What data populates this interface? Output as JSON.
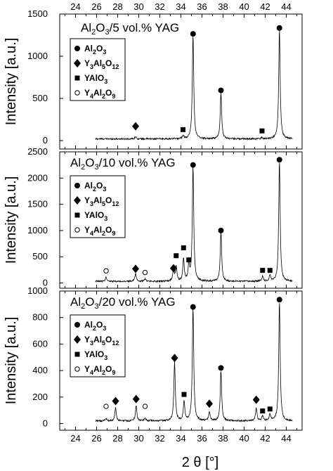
{
  "chart_data": [
    {
      "type": "line",
      "title": "Al2O3/5 vol.% YAG",
      "xlabel": "2 θ [°]",
      "ylabel": "Intensity [a.u.]",
      "xlim": [
        22.5,
        45.5
      ],
      "ylim": [
        -100,
        1500
      ],
      "yticks": [
        0,
        500,
        1000,
        1500
      ],
      "xticks": [
        24,
        26,
        28,
        30,
        32,
        34,
        36,
        38,
        40,
        42,
        44
      ],
      "baseline": 20,
      "peaks": [
        {
          "x": 29.7,
          "h": 30,
          "w": 0.08
        },
        {
          "x": 34.2,
          "h": 45,
          "w": 0.08
        },
        {
          "x": 35.15,
          "h": 1230,
          "w": 0.08
        },
        {
          "x": 37.8,
          "h": 550,
          "w": 0.08
        },
        {
          "x": 41.7,
          "h": 15,
          "w": 0.08
        },
        {
          "x": 43.35,
          "h": 1300,
          "w": 0.08
        }
      ],
      "markers": [
        {
          "phase": "Y3Al5O12",
          "x": 29.7,
          "y": 170
        },
        {
          "phase": "YAlO3",
          "x": 34.2,
          "y": 130
        },
        {
          "phase": "Al2O3",
          "x": 35.15,
          "y": 1265
        },
        {
          "phase": "Al2O3",
          "x": 37.8,
          "y": 595
        },
        {
          "phase": "YAlO3",
          "x": 41.7,
          "y": 115
        },
        {
          "phase": "Al2O3",
          "x": 43.35,
          "y": 1335
        }
      ]
    },
    {
      "type": "line",
      "title": "Al2O3/10 vol.% YAG",
      "xlabel": "2 θ [°]",
      "ylabel": "Intensity [a.u.]",
      "xlim": [
        22.5,
        45.5
      ],
      "ylim": [
        -100,
        2500
      ],
      "yticks": [
        0,
        500,
        1000,
        1500,
        2000,
        2500
      ],
      "xticks": [
        24,
        26,
        28,
        30,
        32,
        34,
        36,
        38,
        40,
        42,
        44
      ],
      "baseline": 30,
      "peaks": [
        {
          "x": 26.9,
          "h": 80,
          "w": 0.08
        },
        {
          "x": 29.7,
          "h": 150,
          "w": 0.08
        },
        {
          "x": 30.6,
          "h": 50,
          "w": 0.08
        },
        {
          "x": 33.3,
          "h": 220,
          "w": 0.08
        },
        {
          "x": 33.55,
          "h": 280,
          "w": 0.08
        },
        {
          "x": 34.25,
          "h": 420,
          "w": 0.08
        },
        {
          "x": 34.75,
          "h": 300,
          "w": 0.08
        },
        {
          "x": 35.15,
          "h": 2200,
          "w": 0.08
        },
        {
          "x": 37.8,
          "h": 950,
          "w": 0.08
        },
        {
          "x": 41.75,
          "h": 100,
          "w": 0.08
        },
        {
          "x": 42.45,
          "h": 120,
          "w": 0.08
        },
        {
          "x": 43.35,
          "h": 2300,
          "w": 0.08
        }
      ],
      "markers": [
        {
          "phase": "Y4Al2O9",
          "x": 26.9,
          "y": 230
        },
        {
          "phase": "Y3Al5O12",
          "x": 29.7,
          "y": 270
        },
        {
          "phase": "Y4Al2O9",
          "x": 30.6,
          "y": 200
        },
        {
          "phase": "Y3Al5O12",
          "x": 33.3,
          "y": 280
        },
        {
          "phase": "YAlO3",
          "x": 33.55,
          "y": 520
        },
        {
          "phase": "YAlO3",
          "x": 34.25,
          "y": 670
        },
        {
          "phase": "YAlO3",
          "x": 34.75,
          "y": 440
        },
        {
          "phase": "Al2O3",
          "x": 35.15,
          "y": 2250
        },
        {
          "phase": "Al2O3",
          "x": 37.8,
          "y": 1000
        },
        {
          "phase": "YAlO3",
          "x": 41.75,
          "y": 240
        },
        {
          "phase": "YAlO3",
          "x": 42.45,
          "y": 240
        },
        {
          "phase": "Al2O3",
          "x": 43.35,
          "y": 2350
        }
      ]
    },
    {
      "type": "line",
      "title": "Al2O3/20 vol.% YAG",
      "xlabel": "2 θ [°]",
      "ylabel": "Intensity [a.u.]",
      "xlim": [
        22.5,
        45.5
      ],
      "ylim": [
        -50,
        1000
      ],
      "yticks": [
        0,
        200,
        400,
        600,
        800,
        1000
      ],
      "xticks": [
        24,
        26,
        28,
        30,
        32,
        34,
        36,
        38,
        40,
        42,
        44
      ],
      "baseline": 20,
      "peaks": [
        {
          "x": 26.9,
          "h": 20,
          "w": 0.08
        },
        {
          "x": 27.8,
          "h": 100,
          "w": 0.08
        },
        {
          "x": 29.75,
          "h": 115,
          "w": 0.08
        },
        {
          "x": 30.6,
          "h": 20,
          "w": 0.08
        },
        {
          "x": 33.4,
          "h": 450,
          "w": 0.08
        },
        {
          "x": 34.3,
          "h": 145,
          "w": 0.08
        },
        {
          "x": 35.15,
          "h": 850,
          "w": 0.08
        },
        {
          "x": 36.7,
          "h": 70,
          "w": 0.08
        },
        {
          "x": 37.8,
          "h": 380,
          "w": 0.08
        },
        {
          "x": 41.15,
          "h": 100,
          "w": 0.08
        },
        {
          "x": 41.75,
          "h": 40,
          "w": 0.08
        },
        {
          "x": 42.45,
          "h": 50,
          "w": 0.08
        },
        {
          "x": 43.35,
          "h": 905,
          "w": 0.08
        }
      ],
      "markers": [
        {
          "phase": "Y4Al2O9",
          "x": 26.9,
          "y": 130
        },
        {
          "phase": "Y3Al5O12",
          "x": 27.8,
          "y": 170
        },
        {
          "phase": "Y3Al5O12",
          "x": 29.75,
          "y": 185
        },
        {
          "phase": "Y4Al2O9",
          "x": 30.6,
          "y": 130
        },
        {
          "phase": "Y3Al5O12",
          "x": 33.4,
          "y": 495
        },
        {
          "phase": "YAlO3",
          "x": 34.3,
          "y": 220
        },
        {
          "phase": "Al2O3",
          "x": 35.15,
          "y": 880
        },
        {
          "phase": "Y3Al5O12",
          "x": 36.7,
          "y": 150
        },
        {
          "phase": "Al2O3",
          "x": 37.8,
          "y": 420
        },
        {
          "phase": "Y3Al5O12",
          "x": 41.15,
          "y": 180
        },
        {
          "phase": "YAlO3",
          "x": 41.75,
          "y": 95
        },
        {
          "phase": "YAlO3",
          "x": 42.45,
          "y": 110
        },
        {
          "phase": "Al2O3",
          "x": 43.35,
          "y": 935
        }
      ]
    }
  ],
  "legend": [
    {
      "phase": "Al2O3",
      "symbol": "filled-circle",
      "label_main": "Al",
      "label_parts": [
        [
          "Al",
          ""
        ],
        [
          "2",
          "sub"
        ],
        [
          "O",
          ""
        ],
        [
          "3",
          "sub"
        ]
      ]
    },
    {
      "phase": "Y3Al5O12",
      "symbol": "filled-diamond",
      "label_parts": [
        [
          "Y",
          ""
        ],
        [
          "3",
          "sub"
        ],
        [
          "Al",
          ""
        ],
        [
          "5",
          "sub"
        ],
        [
          "O",
          ""
        ],
        [
          "12",
          "sub"
        ]
      ]
    },
    {
      "phase": "YAlO3",
      "symbol": "filled-square",
      "label_parts": [
        [
          "YAlO",
          ""
        ],
        [
          "3",
          "sub"
        ]
      ]
    },
    {
      "phase": "Y4Al2O9",
      "symbol": "open-circle",
      "label_parts": [
        [
          "Y",
          ""
        ],
        [
          "4",
          "sub"
        ],
        [
          "Al",
          ""
        ],
        [
          "2",
          "sub"
        ],
        [
          "O",
          ""
        ],
        [
          "9",
          "sub"
        ]
      ]
    }
  ],
  "title_parts": [
    [
      [
        "Al",
        ""
      ],
      [
        "2",
        "sub"
      ],
      [
        "O",
        ""
      ],
      [
        "3",
        "sub"
      ],
      [
        "/5 vol.% YAG",
        ""
      ]
    ],
    [
      [
        "Al",
        ""
      ],
      [
        "2",
        "sub"
      ],
      [
        "O",
        ""
      ],
      [
        "3",
        "sub"
      ],
      [
        "/10 vol.% YAG",
        ""
      ]
    ],
    [
      [
        "Al",
        ""
      ],
      [
        "2",
        "sub"
      ],
      [
        "O",
        ""
      ],
      [
        "3",
        "sub"
      ],
      [
        "/20 vol.% YAG",
        ""
      ]
    ]
  ],
  "xlabel_display": "2 θ [°]",
  "ylabel_display": "Intensity [a.u.]",
  "colors": {
    "line": "#000000",
    "background": "#ffffff"
  }
}
